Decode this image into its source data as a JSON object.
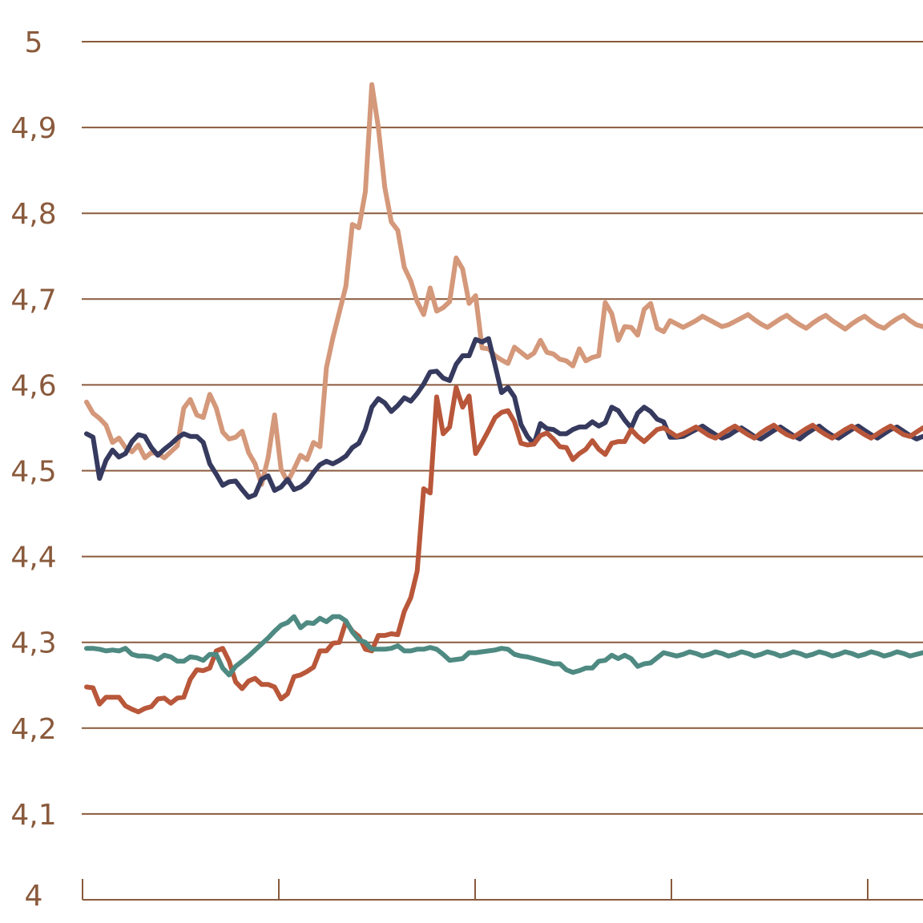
{
  "chart_data": {
    "type": "line",
    "title": "",
    "xlabel": "",
    "ylabel": "",
    "ylim": [
      4,
      5
    ],
    "yticks": [
      {
        "value": 5,
        "label": "5"
      },
      {
        "value": 4.9,
        "label": "4,9"
      },
      {
        "value": 4.8,
        "label": "4,8"
      },
      {
        "value": 4.7,
        "label": "4,7"
      },
      {
        "value": 4.6,
        "label": "4,6"
      },
      {
        "value": 4.5,
        "label": "4,5"
      },
      {
        "value": 4.4,
        "label": "4,4"
      },
      {
        "value": 4.3,
        "label": "4,3"
      },
      {
        "value": 4.2,
        "label": "4,2"
      },
      {
        "value": 4.1,
        "label": "4,1"
      },
      {
        "value": 4,
        "label": "4"
      }
    ],
    "x_count": 130,
    "xticks": [
      0,
      31,
      62,
      93,
      124
    ],
    "grid": true,
    "legend": "none",
    "series": [
      {
        "color": "#d4987a",
        "values": [
          4.58,
          4.567,
          4.561,
          4.553,
          4.533,
          4.538,
          4.527,
          4.522,
          4.53,
          4.515,
          4.521,
          4.52,
          4.515,
          4.522,
          4.529,
          4.573,
          4.583,
          4.565,
          4.562,
          4.589,
          4.573,
          4.545,
          4.537,
          4.539,
          4.546,
          4.521,
          4.508,
          4.484,
          4.515,
          4.565,
          4.502,
          4.487,
          4.502,
          4.518,
          4.513,
          4.533,
          4.528,
          4.62,
          4.655,
          4.685,
          4.715,
          4.787,
          4.783,
          4.825,
          4.95,
          4.9,
          4.83,
          4.79,
          4.78,
          4.737,
          4.721,
          4.697,
          4.682,
          4.713,
          4.686,
          4.69,
          4.697,
          4.748,
          4.735,
          4.695,
          4.704,
          4.643,
          4.642,
          4.634,
          4.629,
          4.625,
          4.644,
          4.638,
          4.632,
          4.637,
          4.652,
          4.638,
          4.636,
          4.63,
          4.628,
          4.622,
          4.642,
          4.628,
          4.632,
          4.634,
          4.696,
          4.683,
          4.652,
          4.668,
          4.667,
          4.658,
          4.688,
          4.695,
          4.666,
          4.662,
          4.675,
          4.671,
          4.667,
          4.671,
          4.675,
          4.68,
          4.676,
          4.672,
          4.668,
          4.67,
          4.674,
          4.678,
          4.682,
          4.676,
          4.671,
          4.667,
          4.672,
          4.677,
          4.681,
          4.675,
          4.67,
          4.666,
          4.672,
          4.677,
          4.681,
          4.675,
          4.67,
          4.665,
          4.671,
          4.676,
          4.68,
          4.674,
          4.669,
          4.666,
          4.672,
          4.677,
          4.681,
          4.675,
          4.67,
          4.668
        ]
      },
      {
        "color": "#363a5e",
        "values": [
          4.543,
          4.539,
          4.491,
          4.512,
          4.524,
          4.516,
          4.52,
          4.534,
          4.542,
          4.54,
          4.527,
          4.518,
          4.525,
          4.531,
          4.538,
          4.543,
          4.54,
          4.54,
          4.533,
          4.508,
          4.496,
          4.483,
          4.487,
          4.488,
          4.478,
          4.469,
          4.472,
          4.49,
          4.494,
          4.477,
          4.481,
          4.49,
          4.478,
          4.481,
          4.487,
          4.498,
          4.507,
          4.511,
          4.508,
          4.512,
          4.517,
          4.527,
          4.532,
          4.548,
          4.574,
          4.584,
          4.579,
          4.569,
          4.576,
          4.585,
          4.581,
          4.59,
          4.601,
          4.615,
          4.616,
          4.608,
          4.605,
          4.624,
          4.634,
          4.634,
          4.653,
          4.65,
          4.654,
          4.623,
          4.591,
          4.597,
          4.586,
          4.554,
          4.54,
          4.531,
          4.555,
          4.549,
          4.548,
          4.543,
          4.543,
          4.548,
          4.551,
          4.551,
          4.557,
          4.552,
          4.556,
          4.574,
          4.57,
          4.559,
          4.55,
          4.567,
          4.574,
          4.569,
          4.56,
          4.557,
          4.539,
          4.539,
          4.54,
          4.544,
          4.548,
          4.552,
          4.547,
          4.542,
          4.538,
          4.541,
          4.546,
          4.55,
          4.545,
          4.54,
          4.537,
          4.542,
          4.547,
          4.551,
          4.546,
          4.541,
          4.537,
          4.543,
          4.548,
          4.552,
          4.546,
          4.541,
          4.538,
          4.543,
          4.548,
          4.552,
          4.547,
          4.542,
          4.538,
          4.543,
          4.548,
          4.551,
          4.546,
          4.541,
          4.537,
          4.54
        ]
      },
      {
        "color": "#b9573a",
        "values": [
          4.248,
          4.247,
          4.228,
          4.236,
          4.236,
          4.236,
          4.226,
          4.222,
          4.219,
          4.223,
          4.225,
          4.234,
          4.235,
          4.229,
          4.235,
          4.236,
          4.257,
          4.268,
          4.267,
          4.27,
          4.29,
          4.293,
          4.278,
          4.254,
          4.246,
          4.255,
          4.258,
          4.251,
          4.251,
          4.248,
          4.234,
          4.24,
          4.26,
          4.262,
          4.266,
          4.271,
          4.29,
          4.29,
          4.299,
          4.3,
          4.324,
          4.313,
          4.307,
          4.292,
          4.29,
          4.308,
          4.308,
          4.31,
          4.309,
          4.336,
          4.352,
          4.383,
          4.479,
          4.474,
          4.586,
          4.543,
          4.551,
          4.597,
          4.574,
          4.587,
          4.52,
          4.533,
          4.547,
          4.562,
          4.568,
          4.57,
          4.557,
          4.532,
          4.53,
          4.531,
          4.541,
          4.544,
          4.537,
          4.528,
          4.527,
          4.513,
          4.52,
          4.525,
          4.535,
          4.525,
          4.519,
          4.532,
          4.534,
          4.534,
          4.548,
          4.54,
          4.534,
          4.541,
          4.548,
          4.55,
          4.545,
          4.54,
          4.543,
          4.547,
          4.551,
          4.546,
          4.541,
          4.538,
          4.543,
          4.548,
          4.552,
          4.547,
          4.542,
          4.538,
          4.544,
          4.549,
          4.553,
          4.547,
          4.542,
          4.539,
          4.544,
          4.549,
          4.553,
          4.547,
          4.542,
          4.538,
          4.543,
          4.548,
          4.552,
          4.547,
          4.542,
          4.538,
          4.543,
          4.548,
          4.552,
          4.547,
          4.542,
          4.54,
          4.545,
          4.55
        ]
      },
      {
        "color": "#4e8a82",
        "values": [
          4.293,
          4.293,
          4.292,
          4.29,
          4.291,
          4.29,
          4.293,
          4.286,
          4.284,
          4.284,
          4.283,
          4.28,
          4.285,
          4.283,
          4.278,
          4.278,
          4.283,
          4.282,
          4.279,
          4.286,
          4.286,
          4.27,
          4.262,
          4.272,
          4.278,
          4.284,
          4.291,
          4.298,
          4.305,
          4.313,
          4.32,
          4.323,
          4.33,
          4.317,
          4.323,
          4.322,
          4.328,
          4.324,
          4.33,
          4.33,
          4.325,
          4.312,
          4.303,
          4.3,
          4.292,
          4.292,
          4.292,
          4.293,
          4.296,
          4.29,
          4.29,
          4.292,
          4.292,
          4.294,
          4.292,
          4.286,
          4.279,
          4.28,
          4.281,
          4.288,
          4.288,
          4.289,
          4.29,
          4.291,
          4.293,
          4.292,
          4.286,
          4.284,
          4.283,
          4.281,
          4.279,
          4.277,
          4.275,
          4.275,
          4.268,
          4.265,
          4.267,
          4.27,
          4.27,
          4.278,
          4.279,
          4.285,
          4.281,
          4.285,
          4.281,
          4.272,
          4.275,
          4.276,
          4.282,
          4.288,
          4.286,
          4.284,
          4.286,
          4.289,
          4.287,
          4.284,
          4.286,
          4.289,
          4.287,
          4.284,
          4.286,
          4.289,
          4.287,
          4.284,
          4.286,
          4.289,
          4.287,
          4.284,
          4.286,
          4.289,
          4.287,
          4.284,
          4.286,
          4.289,
          4.287,
          4.284,
          4.286,
          4.289,
          4.287,
          4.284,
          4.286,
          4.289,
          4.287,
          4.284,
          4.286,
          4.289,
          4.287,
          4.284,
          4.286,
          4.288
        ]
      }
    ]
  }
}
